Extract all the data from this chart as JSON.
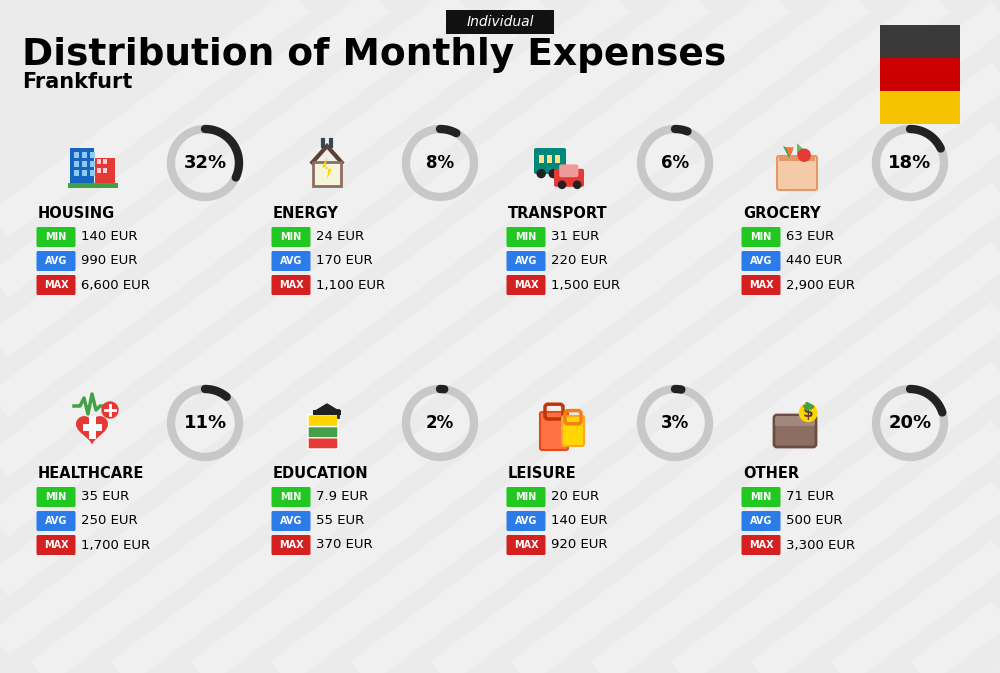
{
  "title": "Distribution of Monthly Expenses",
  "subtitle": "Frankfurt",
  "label_top": "Individual",
  "background_color": "#ebebeb",
  "categories": [
    {
      "name": "HOUSING",
      "pct": 32,
      "min": "140 EUR",
      "avg": "990 EUR",
      "max": "6,600 EUR",
      "row": 0,
      "col": 0
    },
    {
      "name": "ENERGY",
      "pct": 8,
      "min": "24 EUR",
      "avg": "170 EUR",
      "max": "1,100 EUR",
      "row": 0,
      "col": 1
    },
    {
      "name": "TRANSPORT",
      "pct": 6,
      "min": "31 EUR",
      "avg": "220 EUR",
      "max": "1,500 EUR",
      "row": 0,
      "col": 2
    },
    {
      "name": "GROCERY",
      "pct": 18,
      "min": "63 EUR",
      "avg": "440 EUR",
      "max": "2,900 EUR",
      "row": 0,
      "col": 3
    },
    {
      "name": "HEALTHCARE",
      "pct": 11,
      "min": "35 EUR",
      "avg": "250 EUR",
      "max": "1,700 EUR",
      "row": 1,
      "col": 0
    },
    {
      "name": "EDUCATION",
      "pct": 2,
      "min": "7.9 EUR",
      "avg": "55 EUR",
      "max": "370 EUR",
      "row": 1,
      "col": 1
    },
    {
      "name": "LEISURE",
      "pct": 3,
      "min": "20 EUR",
      "avg": "140 EUR",
      "max": "920 EUR",
      "row": 1,
      "col": 2
    },
    {
      "name": "OTHER",
      "pct": 20,
      "min": "71 EUR",
      "avg": "500 EUR",
      "max": "3,300 EUR",
      "row": 1,
      "col": 3
    }
  ],
  "min_color": "#22c722",
  "avg_color": "#2b7be8",
  "max_color": "#d42020",
  "label_bg_color": "#111111",
  "label_text_color": "#ffffff",
  "circle_dark": "#222222",
  "circle_light": "#c8c8c8",
  "germany_colors": [
    "#3a3a3a",
    "#cc0000",
    "#f5c300"
  ],
  "stripe_color": "#ffffff",
  "stripe_alpha": 0.25
}
